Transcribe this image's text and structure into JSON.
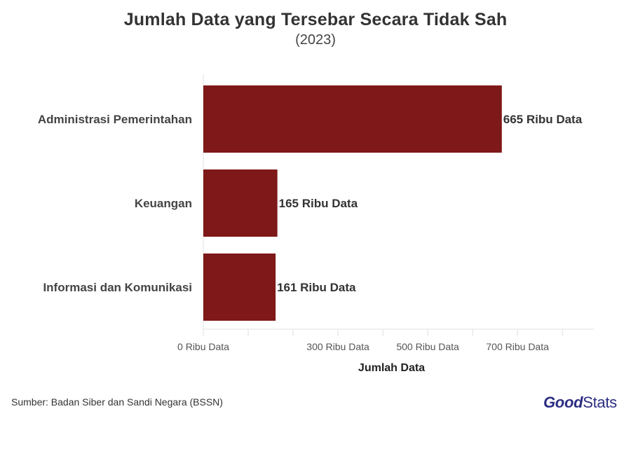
{
  "title": "Jumlah Data yang Tersebar Secara Tidak Sah",
  "subtitle": "(2023)",
  "source": "Sumber: Badan Siber dan Sandi Negara (BSSN)",
  "logo": {
    "part1": "Good",
    "part2": "Stats"
  },
  "colors": {
    "bar": "#7f1818",
    "logo": "#2b2d83"
  },
  "chart_data": {
    "type": "bar",
    "orientation": "horizontal",
    "categories": [
      "Administrasi Pemerintahan",
      "Keuangan",
      "Informasi dan Komunikasi"
    ],
    "values": [
      665,
      165,
      161
    ],
    "value_labels": [
      "665 Ribu Data",
      "165 Ribu Data",
      "161 Ribu Data"
    ],
    "xlabel": "Jumlah Data",
    "xlim": [
      0,
      870
    ],
    "x_ticks": [
      0,
      100,
      200,
      300,
      400,
      500,
      600,
      700,
      800
    ],
    "x_tick_labels": {
      "0": "0 Ribu Data",
      "300": "300 Ribu Data",
      "500": "500 Ribu Data",
      "700": "700 Ribu Data"
    },
    "grid": false
  }
}
